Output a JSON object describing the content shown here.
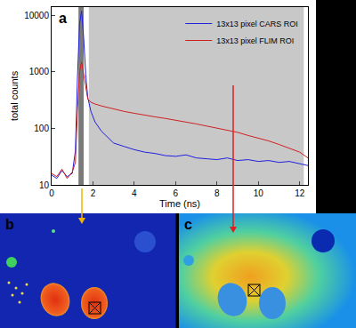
{
  "chart_data": {
    "type": "line",
    "panel_label": "a",
    "xlabel": "Time (ns)",
    "ylabel": "total counts",
    "x": [
      0,
      0.25,
      0.5,
      0.75,
      1.0,
      1.15,
      1.25,
      1.35,
      1.45,
      1.55,
      1.65,
      1.75,
      1.9,
      2.1,
      2.4,
      2.7,
      3.0,
      3.5,
      4,
      4.5,
      5,
      5.5,
      6,
      6.5,
      7,
      7.5,
      8,
      8.5,
      9,
      9.5,
      10,
      10.5,
      11,
      11.5,
      12,
      12.4
    ],
    "series": [
      {
        "name": "13x13 pixel CARS ROI",
        "color": "#2020e0",
        "values": [
          15,
          13,
          18,
          14,
          16,
          40,
          800,
          7000,
          12000,
          4000,
          900,
          350,
          200,
          130,
          90,
          70,
          55,
          48,
          42,
          38,
          36,
          33,
          32,
          34,
          30,
          29,
          28,
          30,
          27,
          28,
          26,
          27,
          25,
          26,
          24,
          22
        ]
      },
      {
        "name": "13x13 pixel FLIM ROI",
        "color": "#d02020",
        "values": [
          16,
          14,
          19,
          13,
          17,
          25,
          200,
          1000,
          1500,
          900,
          500,
          330,
          290,
          270,
          250,
          235,
          220,
          200,
          185,
          170,
          160,
          150,
          140,
          130,
          120,
          110,
          100,
          92,
          85,
          75,
          68,
          60,
          52,
          45,
          38,
          30
        ]
      }
    ],
    "xlim": [
      0,
      12.4
    ],
    "ylim": [
      10,
      14000
    ],
    "xticks": [
      0,
      2,
      4,
      6,
      8,
      10,
      12
    ],
    "yticks": [
      10,
      100,
      1000,
      10000
    ],
    "log": "y",
    "grid": false,
    "legend": "upper right",
    "shaded_ranges": [
      {
        "x": [
          1.3,
          1.55
        ],
        "color": "#7a7a7a"
      },
      {
        "x": [
          1.8,
          12.2
        ],
        "color": "#c8c8c8"
      }
    ]
  },
  "images": [
    {
      "label": "b"
    },
    {
      "label": "c"
    }
  ]
}
